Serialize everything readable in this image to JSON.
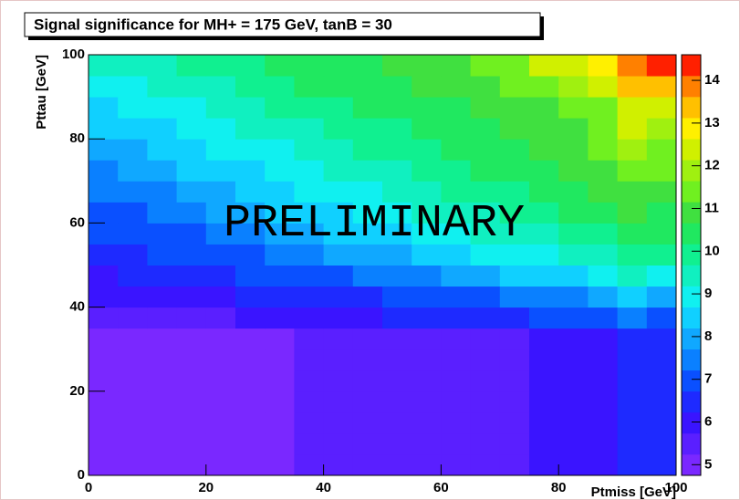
{
  "chart_data": {
    "type": "heatmap",
    "title": "Signal significance for MH+ = 175 GeV, tanB = 30",
    "xlabel": "Ptmiss [GeV]",
    "ylabel": "Pttau [GeV]",
    "annotation": "PRELIMINARY",
    "annotation_color": "#ffee22",
    "xbins": [
      0,
      5,
      10,
      15,
      20,
      25,
      30,
      35,
      40,
      45,
      50,
      55,
      60,
      65,
      70,
      75,
      80,
      85,
      90,
      95,
      100
    ],
    "ybins": [
      0,
      5,
      10,
      15,
      20,
      25,
      30,
      35,
      40,
      45,
      50,
      55,
      60,
      65,
      70,
      75,
      80,
      85,
      90,
      95,
      100
    ],
    "values": [
      [
        4.9,
        4.9,
        4.9,
        4.9,
        4.9,
        4.9,
        4.9,
        5.4,
        5.4,
        5.4,
        5.4,
        5.4,
        5.4,
        5.4,
        5.4,
        6.0,
        6.0,
        6.0,
        6.6,
        6.3
      ],
      [
        4.9,
        4.9,
        4.9,
        4.9,
        4.9,
        4.9,
        4.9,
        5.4,
        5.4,
        5.4,
        5.4,
        5.4,
        5.4,
        5.4,
        5.4,
        6.0,
        6.0,
        6.0,
        6.6,
        6.3
      ],
      [
        4.9,
        4.9,
        4.9,
        4.9,
        4.9,
        4.9,
        4.9,
        5.4,
        5.4,
        5.4,
        5.4,
        5.4,
        5.4,
        5.4,
        5.4,
        6.0,
        6.0,
        6.0,
        6.6,
        6.3
      ],
      [
        4.9,
        4.9,
        4.9,
        4.9,
        4.9,
        4.9,
        4.9,
        5.4,
        5.4,
        5.4,
        5.4,
        5.4,
        5.4,
        5.4,
        5.4,
        6.0,
        6.0,
        6.0,
        6.6,
        6.3
      ],
      [
        4.9,
        4.9,
        4.9,
        4.9,
        4.9,
        4.9,
        4.9,
        5.4,
        5.4,
        5.4,
        5.4,
        5.4,
        5.4,
        5.4,
        5.4,
        6.0,
        6.0,
        6.0,
        6.6,
        6.3
      ],
      [
        4.9,
        4.9,
        4.9,
        4.9,
        4.9,
        4.9,
        4.9,
        5.4,
        5.4,
        5.4,
        5.4,
        5.4,
        5.4,
        5.4,
        5.4,
        6.0,
        6.0,
        6.0,
        6.6,
        6.3
      ],
      [
        4.9,
        4.9,
        4.9,
        4.9,
        4.9,
        4.9,
        4.9,
        5.4,
        5.4,
        5.4,
        5.4,
        5.4,
        5.4,
        5.4,
        5.4,
        6.0,
        6.0,
        6.0,
        6.6,
        6.3
      ],
      [
        5.5,
        5.5,
        5.6,
        5.6,
        5.7,
        5.8,
        5.9,
        6.0,
        6.1,
        6.2,
        6.3,
        6.4,
        6.5,
        6.6,
        6.7,
        6.8,
        7.0,
        7.2,
        7.5,
        7.2
      ],
      [
        5.9,
        5.9,
        6.0,
        6.1,
        6.2,
        6.3,
        6.4,
        6.5,
        6.6,
        6.7,
        6.9,
        7.0,
        7.1,
        7.2,
        7.3,
        7.5,
        7.7,
        8.0,
        8.3,
        8.0
      ],
      [
        6.2,
        6.3,
        6.4,
        6.5,
        6.6,
        6.8,
        6.9,
        7.0,
        7.2,
        7.4,
        7.5,
        7.7,
        7.9,
        8.0,
        8.2,
        8.4,
        8.6,
        8.9,
        9.3,
        9.0
      ],
      [
        6.5,
        6.6,
        6.8,
        6.9,
        7.0,
        7.2,
        7.4,
        7.6,
        7.8,
        8.0,
        8.1,
        8.3,
        8.5,
        8.7,
        8.9,
        9.1,
        9.3,
        9.6,
        10.0,
        9.8
      ],
      [
        6.8,
        6.9,
        7.1,
        7.2,
        7.4,
        7.6,
        7.8,
        8.0,
        8.2,
        8.4,
        8.6,
        8.8,
        9.0,
        9.2,
        9.4,
        9.6,
        9.8,
        10.1,
        10.5,
        10.3
      ],
      [
        7.1,
        7.2,
        7.4,
        7.6,
        7.8,
        8.0,
        8.2,
        8.4,
        8.6,
        8.8,
        9.0,
        9.2,
        9.4,
        9.6,
        9.8,
        10.0,
        10.2,
        10.5,
        10.8,
        10.6
      ],
      [
        7.4,
        7.5,
        7.7,
        7.9,
        8.1,
        8.3,
        8.5,
        8.7,
        8.9,
        9.1,
        9.3,
        9.5,
        9.7,
        9.9,
        10.1,
        10.3,
        10.5,
        10.8,
        11.1,
        10.9
      ],
      [
        7.7,
        7.8,
        8.0,
        8.2,
        8.4,
        8.6,
        8.8,
        9.0,
        9.2,
        9.4,
        9.6,
        9.8,
        10.0,
        10.2,
        10.3,
        10.5,
        10.7,
        11.0,
        11.4,
        11.2
      ],
      [
        8.0,
        8.1,
        8.3,
        8.5,
        8.7,
        8.9,
        9.1,
        9.3,
        9.5,
        9.7,
        9.9,
        10.1,
        10.2,
        10.4,
        10.5,
        10.7,
        10.9,
        11.2,
        11.8,
        11.6
      ],
      [
        8.3,
        8.4,
        8.6,
        8.8,
        9.0,
        9.2,
        9.4,
        9.6,
        9.8,
        10.0,
        10.1,
        10.3,
        10.4,
        10.6,
        10.7,
        10.9,
        11.1,
        11.4,
        12.2,
        12.0
      ],
      [
        8.6,
        8.7,
        8.9,
        9.1,
        9.3,
        9.5,
        9.7,
        9.9,
        10.1,
        10.2,
        10.3,
        10.5,
        10.6,
        10.8,
        10.9,
        11.1,
        11.3,
        11.6,
        12.6,
        12.6
      ],
      [
        8.9,
        9.0,
        9.2,
        9.4,
        9.6,
        9.8,
        10.0,
        10.2,
        10.3,
        10.4,
        10.5,
        10.7,
        10.8,
        11.0,
        11.2,
        11.5,
        11.8,
        12.2,
        13.2,
        13.5
      ],
      [
        9.2,
        9.3,
        9.5,
        9.7,
        9.9,
        10.1,
        10.2,
        10.4,
        10.5,
        10.6,
        10.7,
        10.9,
        11.0,
        11.2,
        11.6,
        12.2,
        12.5,
        12.8,
        13.8,
        14.3
      ]
    ],
    "xlim": [
      0,
      100
    ],
    "ylim": [
      0,
      100
    ],
    "xticks": [
      0,
      20,
      40,
      60,
      80,
      100
    ],
    "yticks": [
      0,
      20,
      40,
      60,
      80,
      100
    ],
    "zlim": [
      4.75,
      14.6
    ],
    "zticks": [
      5,
      6,
      7,
      8,
      9,
      10,
      11,
      12,
      13,
      14
    ],
    "palette": [
      "#7a28ff",
      "#5a1fff",
      "#3a14ff",
      "#1e2aff",
      "#0a50ff",
      "#0a80ff",
      "#10a8ff",
      "#10d0ff",
      "#10f0f0",
      "#10f0c0",
      "#10f090",
      "#20e860",
      "#40e040",
      "#70f020",
      "#a0f010",
      "#d0f000",
      "#fff000",
      "#ffc000",
      "#ff8000",
      "#ff2000"
    ]
  }
}
